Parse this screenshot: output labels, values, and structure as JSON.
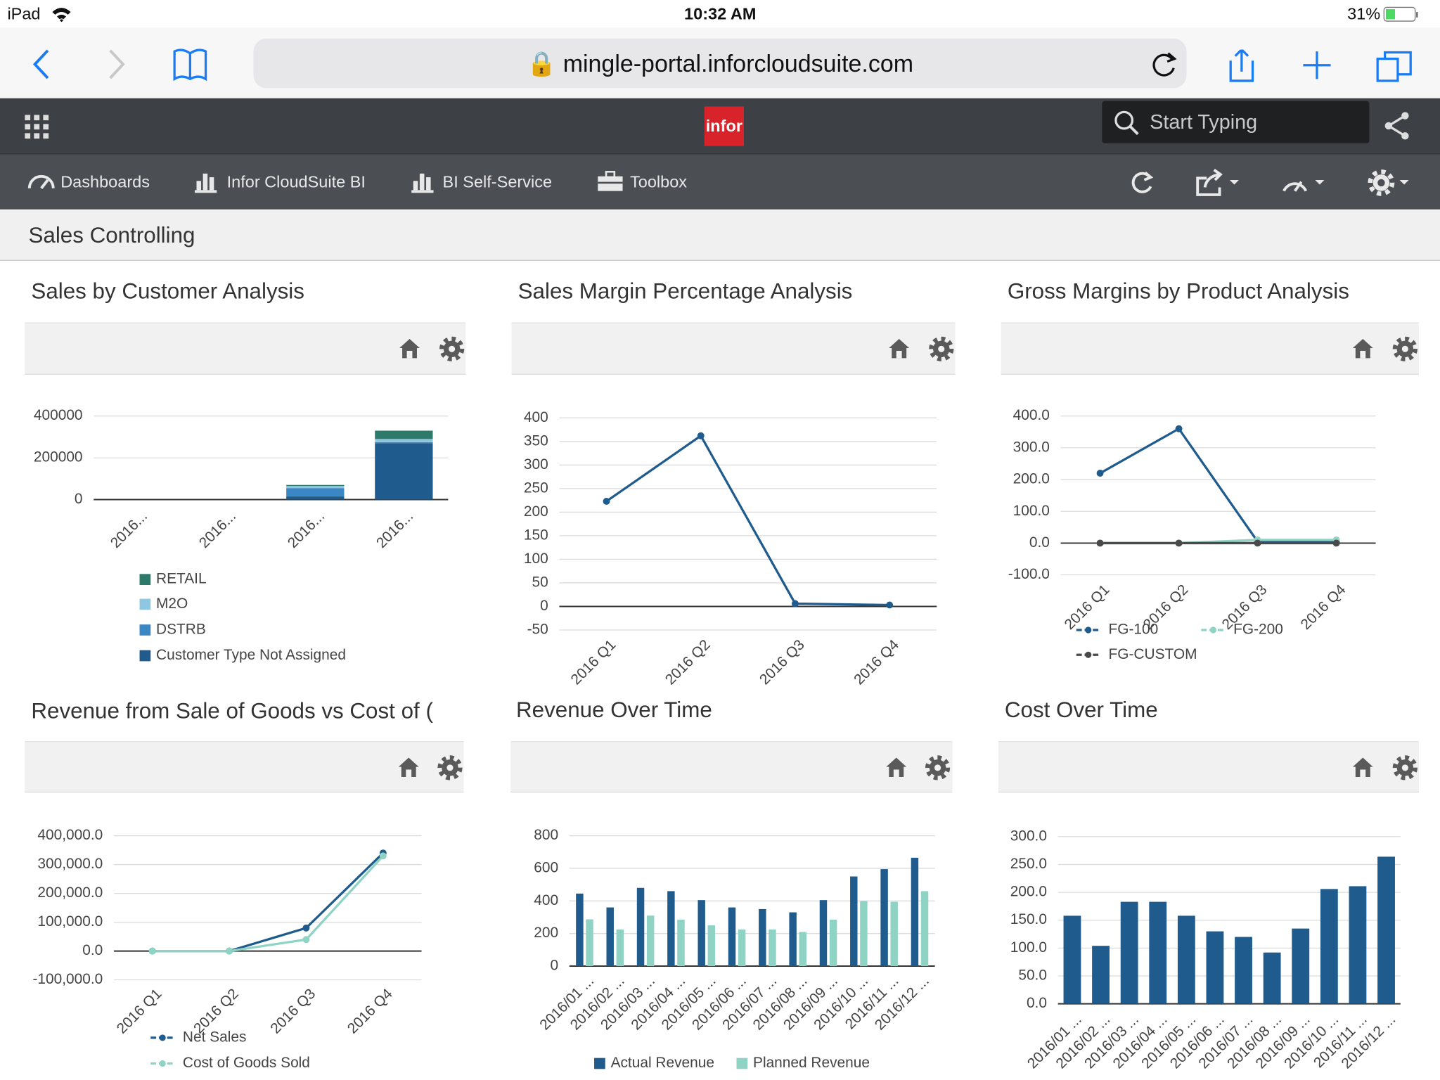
{
  "status_bar": {
    "device": "iPad",
    "time": "10:32 AM",
    "battery": "31%"
  },
  "browser": {
    "url": "mingle-portal.inforcloudsuite.com"
  },
  "app_bar": {
    "logo": "infor",
    "search_placeholder": "Start Typing"
  },
  "nav": [
    "Dashboards",
    "Infor CloudSuite BI",
    "BI Self-Service",
    "Toolbox"
  ],
  "page_title": "Sales Controlling",
  "chart_data": [
    {
      "type": "bar",
      "stacked": true,
      "title": "Sales by Customer Analysis",
      "categories": [
        "2016...",
        "2016...",
        "2016...",
        "2016..."
      ],
      "series": [
        {
          "name": "RETAIL",
          "color": "#2e7a6a",
          "values": [
            0,
            0,
            5000,
            40000
          ]
        },
        {
          "name": "M2O",
          "color": "#8fc7e3",
          "values": [
            0,
            0,
            10000,
            15000
          ]
        },
        {
          "name": "DSTRB",
          "color": "#3b87c4",
          "values": [
            0,
            0,
            40000,
            5000
          ]
        },
        {
          "name": "Customer Type Not Assigned",
          "color": "#1f5b8c",
          "values": [
            0,
            0,
            15000,
            270000
          ]
        }
      ],
      "ylim": [
        0,
        400000
      ],
      "yticks": [
        0,
        200000,
        400000
      ],
      "grid": true,
      "legend": "bottom-left"
    },
    {
      "type": "line",
      "title": "Sales Margin Percentage Analysis",
      "categories": [
        "2016 Q1",
        "2016 Q2",
        "2016 Q3",
        "2016 Q4"
      ],
      "values": [
        223,
        362,
        6,
        3
      ],
      "color": "#1f5b8c",
      "ylim": [
        -50,
        400
      ],
      "yticks": [
        -50,
        0,
        50,
        100,
        150,
        200,
        250,
        300,
        350,
        400
      ],
      "grid": true
    },
    {
      "type": "line",
      "title": "Gross Margins by Product Analysis",
      "categories": [
        "2016 Q1",
        "2016 Q2",
        "2016 Q3",
        "2016 Q4"
      ],
      "series": [
        {
          "name": "FG-100",
          "color": "#1f5b8c",
          "values": [
            220,
            360,
            5,
            5
          ]
        },
        {
          "name": "FG-200",
          "color": "#8fd3c4",
          "values": [
            0,
            0,
            10,
            10
          ]
        },
        {
          "name": "FG-CUSTOM",
          "color": "#4a4a4a",
          "values": [
            0,
            0,
            0,
            0
          ]
        }
      ],
      "ylim": [
        -100,
        400
      ],
      "yticks": [
        {
          "value": -100,
          "label": "-100.0"
        },
        {
          "value": 0,
          "label": "0.0"
        },
        {
          "value": 100,
          "label": "100.0"
        },
        {
          "value": 200,
          "label": "200.0"
        },
        {
          "value": 300,
          "label": "300.0"
        },
        {
          "value": 400,
          "label": "400.0"
        }
      ],
      "grid": true,
      "legend": "bottom-left"
    },
    {
      "type": "line",
      "title": "Revenue from Sale of Goods vs Cost of (",
      "categories": [
        "2016 Q1",
        "2016 Q2",
        "2016 Q3",
        "2016 Q4"
      ],
      "series": [
        {
          "name": "Net Sales",
          "color": "#1f5b8c",
          "values": [
            0,
            0,
            80000,
            340000
          ]
        },
        {
          "name": "Cost of Goods Sold",
          "color": "#8fd3c4",
          "values": [
            0,
            0,
            40000,
            330000
          ]
        }
      ],
      "ylim": [
        -100000,
        400000
      ],
      "yticks": [
        {
          "value": -100000,
          "label": "-100,000.0"
        },
        {
          "value": 0,
          "label": "0.0"
        },
        {
          "value": 100000,
          "label": "100,000.0"
        },
        {
          "value": 200000,
          "label": "200,000.0"
        },
        {
          "value": 300000,
          "label": "300,000.0"
        },
        {
          "value": 400000,
          "label": "400,000.0"
        }
      ],
      "grid": true,
      "legend": "bottom-left"
    },
    {
      "type": "bar",
      "title": "Revenue Over Time",
      "categories": [
        "2016/01 ...",
        "2016/02 ...",
        "2016/03 ...",
        "2016/04 ...",
        "2016/05 ...",
        "2016/06 ...",
        "2016/07 ...",
        "2016/08 ...",
        "2016/09 ...",
        "2016/10 ...",
        "2016/11 ...",
        "2016/12 ..."
      ],
      "series": [
        {
          "name": "Actual Revenue",
          "color": "#1f5b8c",
          "values": [
            445,
            360,
            480,
            460,
            405,
            360,
            350,
            330,
            405,
            550,
            595,
            665
          ]
        },
        {
          "name": "Planned Revenue",
          "color": "#8fd3c4",
          "values": [
            287,
            225,
            310,
            285,
            250,
            225,
            225,
            210,
            285,
            400,
            395,
            460
          ]
        }
      ],
      "ylim": [
        0,
        800
      ],
      "yticks": [
        0,
        200,
        400,
        600,
        800
      ],
      "grid": true,
      "legend": "bottom-left"
    },
    {
      "type": "bar",
      "title": "Cost Over Time",
      "categories": [
        "2016/01 ...",
        "2016/02 ...",
        "2016/03 ...",
        "2016/04 ...",
        "2016/05 ...",
        "2016/06 ...",
        "2016/07 ...",
        "2016/08 ...",
        "2016/09 ...",
        "2016/10 ...",
        "2016/11 ...",
        "2016/12 ..."
      ],
      "values": [
        158,
        104,
        183,
        183,
        158,
        130,
        120,
        92,
        135,
        206,
        211,
        264
      ],
      "color": "#1f5b8c",
      "ylim": [
        0,
        300
      ],
      "yticks": [
        {
          "value": 0,
          "label": "0.0"
        },
        {
          "value": 50,
          "label": "50.0"
        },
        {
          "value": 100,
          "label": "100.0"
        },
        {
          "value": 150,
          "label": "150.0"
        },
        {
          "value": 200,
          "label": "200.0"
        },
        {
          "value": 250,
          "label": "250.0"
        },
        {
          "value": 300,
          "label": "300.0"
        }
      ],
      "grid": true
    }
  ]
}
